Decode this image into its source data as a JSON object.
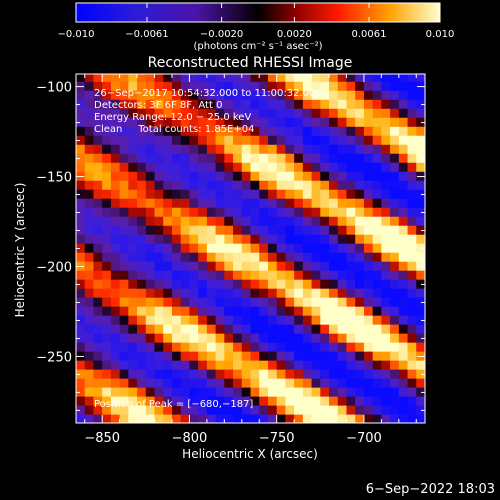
{
  "chart_data": {
    "type": "heatmap",
    "title": "Reconstructed RHESSI Image",
    "colorbar": {
      "range": [
        -0.01,
        0.01
      ],
      "tick_labels": [
        "−0.010",
        "−0.0061",
        "−0.0020",
        "0.0020",
        "0.0061",
        "0.010"
      ],
      "tick_values": [
        -0.01,
        -0.0061,
        -0.002,
        0.002,
        0.0061,
        0.01
      ],
      "unit_label": "(photons cm⁻² s⁻¹ asec⁻²)"
    },
    "xlabel": "Heliocentric X (arcsec)",
    "ylabel": "Heliocentric Y (arcsec)",
    "xlim": [
      -865,
      -665
    ],
    "ylim": [
      -287,
      -93
    ],
    "xticks": [
      -850,
      -800,
      -750,
      -700
    ],
    "xtick_labels": [
      "−850",
      "−800",
      "−750",
      "−700"
    ],
    "yticks": [
      -100,
      -150,
      -200,
      -250
    ],
    "ytick_labels": [
      "−100",
      "−150",
      "−200",
      "−250"
    ],
    "annotations": {
      "time": "26−Sep−2017 10:54:32.000 to 11:00:32.000",
      "detectors": "Detectors: 3F 6F 8F, Att 0",
      "energy": "Energy Range: 12.0 − 25.0 keV",
      "clean": "Clean     Total counts: 1.85E+04",
      "peak": "Position of Peak = [−680,−187]"
    },
    "peak_position": [
      -680,
      -187
    ],
    "footer": "6−Sep−2022 18:03"
  }
}
